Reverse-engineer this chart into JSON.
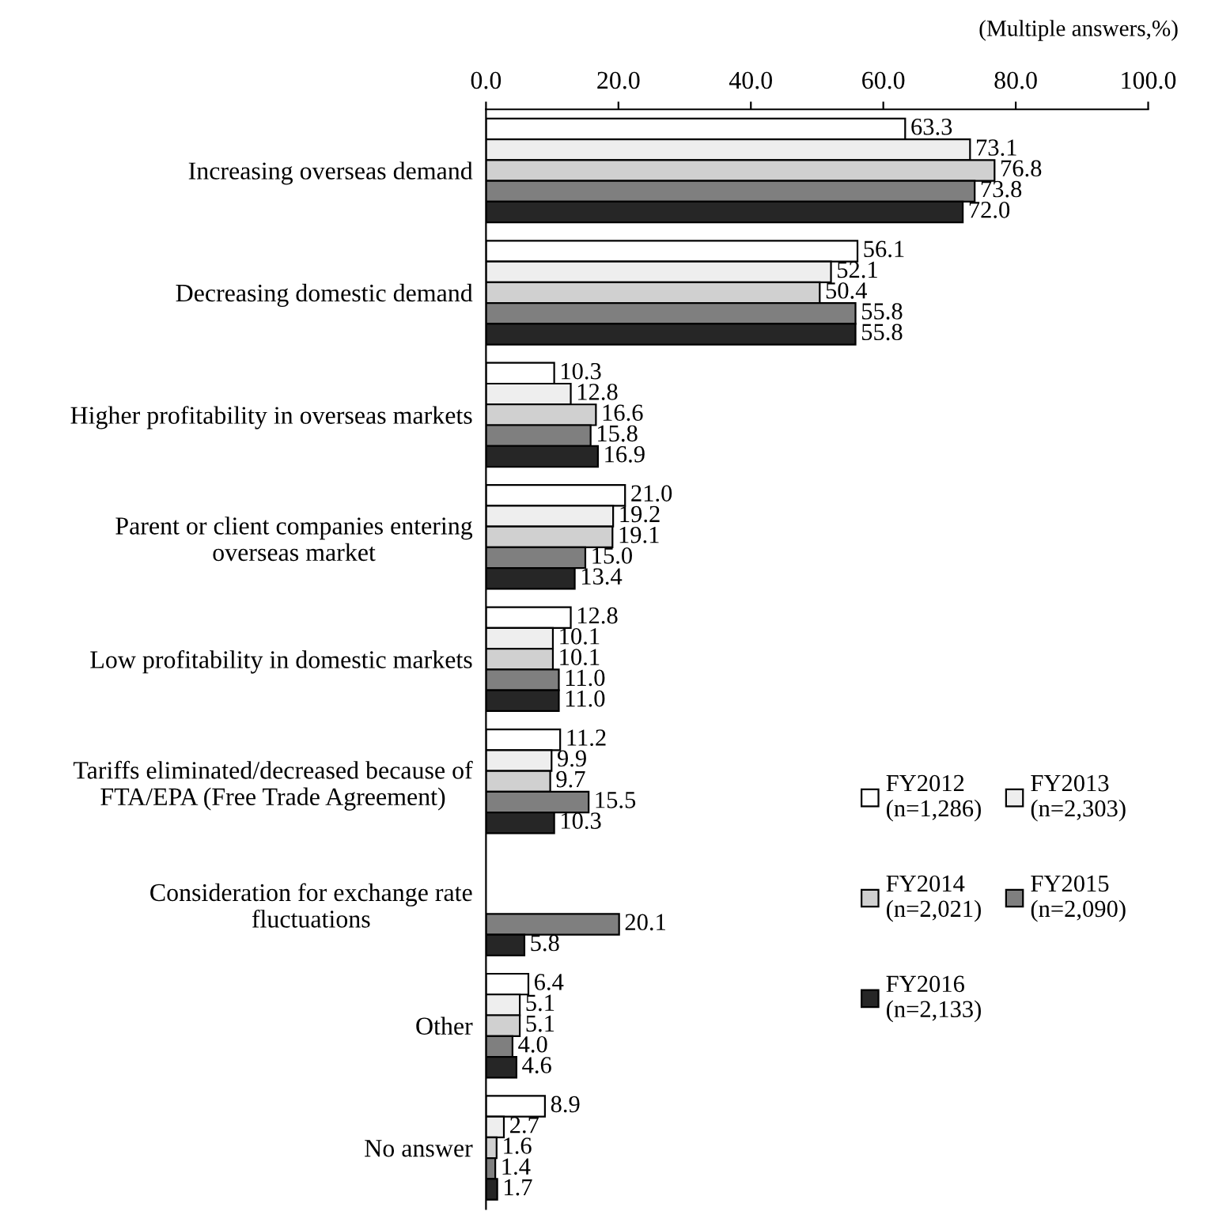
{
  "chart_data": {
    "type": "bar",
    "orientation": "horizontal",
    "annotations": [
      "(Multiple answers,%)"
    ],
    "categories": [
      "Increasing overseas demand",
      "Decreasing domestic demand",
      "Higher profitability in overseas markets",
      "Parent or client companies entering\noverseas market",
      "Low profitability in domestic markets",
      "Tariffs eliminated/decreased because of\nFTA/EPA (Free Trade Agreement)",
      "Consideration for exchange rate\nfluctuations",
      "Other",
      "No answer"
    ],
    "series": [
      {
        "name": "FY2012\n(n=1,286)",
        "color": "#ffffff",
        "values": [
          63.3,
          56.1,
          10.3,
          21.0,
          12.8,
          11.2,
          null,
          6.4,
          8.9
        ],
        "value_labels": [
          "63.3",
          "56.1",
          "10.3",
          "21.0",
          "12.8",
          "11.2",
          null,
          "6.4",
          "8.9"
        ]
      },
      {
        "name": "FY2013\n(n=2,303)",
        "color": "#eeeeee",
        "values": [
          73.1,
          52.1,
          12.8,
          19.2,
          10.1,
          9.9,
          null,
          5.1,
          2.7
        ],
        "value_labels": [
          "73.1",
          "52.1",
          "12.8",
          "19.2",
          "10.1",
          "9.9",
          null,
          "5.1",
          "2.7"
        ]
      },
      {
        "name": "FY2014\n(n=2,021)",
        "color": "#d0d0d0",
        "values": [
          76.8,
          50.4,
          16.6,
          19.1,
          10.1,
          9.7,
          null,
          5.1,
          1.6
        ],
        "value_labels": [
          "76.8",
          "50.4",
          "16.6",
          "19.1",
          "10.1",
          "9.7",
          null,
          "5.1",
          "1.6"
        ]
      },
      {
        "name": "FY2015\n(n=2,090)",
        "color": "#7f7f7f",
        "values": [
          73.8,
          55.8,
          15.8,
          15.0,
          11.0,
          15.5,
          20.1,
          4.0,
          1.4
        ],
        "value_labels": [
          "73.8",
          "55.8",
          "15.8",
          "15.0",
          "11.0",
          "15.5",
          "20.1",
          "4.0",
          "1.4"
        ]
      },
      {
        "name": "FY2016\n(n=2,133)",
        "color": "#262626",
        "values": [
          72.0,
          55.8,
          16.9,
          13.4,
          11.0,
          10.3,
          5.8,
          4.6,
          1.7
        ],
        "value_labels": [
          "72.0",
          "55.8",
          "16.9",
          "13.4",
          "11.0",
          "10.3",
          "5.8",
          "4.6",
          "1.7"
        ]
      }
    ],
    "xlim": [
      0,
      100
    ],
    "xticks": [
      {
        "value": 0,
        "label": "0.0"
      },
      {
        "value": 20,
        "label": "20.0"
      },
      {
        "value": 40,
        "label": "40.0"
      },
      {
        "value": 60,
        "label": "60.0"
      },
      {
        "value": 80,
        "label": "80.0"
      },
      {
        "value": 100,
        "label": "100.0"
      }
    ],
    "legend": "bottom right",
    "grid": false
  }
}
